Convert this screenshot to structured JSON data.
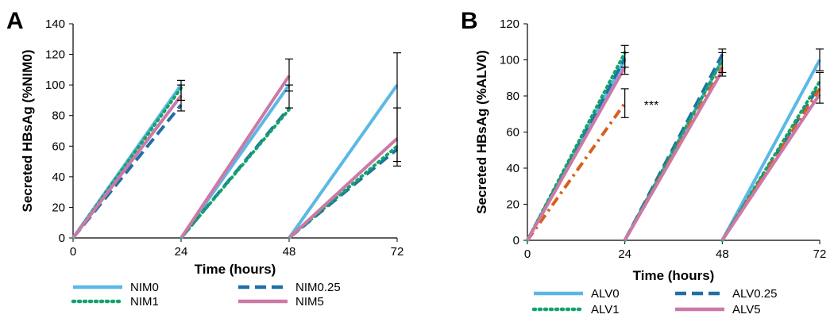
{
  "chart_data": [
    {
      "panel": "A",
      "type": "line",
      "xlabel": "Time (hours)",
      "ylabel": "Secreted HBsAg (%NIM0)",
      "xlim": [
        0,
        72
      ],
      "ylim": [
        0,
        140
      ],
      "xticks": [
        0,
        24,
        48,
        72
      ],
      "yticks": [
        0,
        20,
        40,
        60,
        80,
        100,
        120,
        140
      ],
      "grid": false,
      "legend_position": "bottom",
      "series": [
        {
          "name": "NIM0",
          "color": "#5BB8E6",
          "style": "solid",
          "segments": [
            [
              [
                0,
                0
              ],
              [
                24,
                100
              ]
            ],
            [
              [
                24,
                0
              ],
              [
                48,
                100
              ]
            ],
            [
              [
                48,
                0
              ],
              [
                72,
                100
              ]
            ]
          ]
        },
        {
          "name": "NIM0.25",
          "color": "#1F6FA8",
          "style": "dashed",
          "segments": [
            [
              [
                0,
                0
              ],
              [
                24,
                87
              ]
            ],
            [
              [
                24,
                0
              ],
              [
                48,
                85
              ]
            ],
            [
              [
                48,
                0
              ],
              [
                72,
                58
              ]
            ]
          ]
        },
        {
          "name": "NIM1",
          "color": "#14A36B",
          "style": "dotted",
          "segments": [
            [
              [
                0,
                0
              ],
              [
                24,
                98
              ]
            ],
            [
              [
                24,
                0
              ],
              [
                48,
                84
              ]
            ],
            [
              [
                48,
                0
              ],
              [
                72,
                60
              ]
            ]
          ]
        },
        {
          "name": "NIM5",
          "color": "#CC79A7",
          "style": "solid",
          "segments": [
            [
              [
                0,
                0
              ],
              [
                24,
                93
              ]
            ],
            [
              [
                24,
                0
              ],
              [
                48,
                106
              ]
            ],
            [
              [
                48,
                0
              ],
              [
                72,
                65
              ]
            ]
          ]
        }
      ],
      "error_bars": [
        {
          "x": 24,
          "low": 90,
          "high": 103
        },
        {
          "x": 24,
          "low": 83,
          "high": 100
        },
        {
          "x": 48,
          "low": 96,
          "high": 117
        },
        {
          "x": 48,
          "low": 85,
          "high": 100
        },
        {
          "x": 72,
          "low": 47,
          "high": 121
        },
        {
          "x": 72,
          "low": 50,
          "high": 85
        }
      ]
    },
    {
      "panel": "B",
      "type": "line",
      "xlabel": "Time (hours)",
      "ylabel": "Secreted HBsAg (%ALV0)",
      "xlim": [
        0,
        72
      ],
      "ylim": [
        0,
        120
      ],
      "xticks": [
        0,
        24,
        48,
        72
      ],
      "yticks": [
        0,
        20,
        40,
        60,
        80,
        100,
        120
      ],
      "grid": false,
      "legend_position": "bottom",
      "annotation": "***",
      "series": [
        {
          "name": "ALV0",
          "color": "#5BB8E6",
          "style": "solid",
          "segments": [
            [
              [
                0,
                0
              ],
              [
                24,
                100
              ]
            ],
            [
              [
                24,
                0
              ],
              [
                48,
                100
              ]
            ],
            [
              [
                48,
                0
              ],
              [
                72,
                100
              ]
            ]
          ]
        },
        {
          "name": "ALV0.25",
          "color": "#1F6FA8",
          "style": "dashed",
          "segments": [
            [
              [
                0,
                0
              ],
              [
                24,
                101
              ]
            ],
            [
              [
                24,
                0
              ],
              [
                48,
                103
              ]
            ],
            [
              [
                48,
                0
              ],
              [
                72,
                86
              ]
            ]
          ]
        },
        {
          "name": "ALV1",
          "color": "#14A36B",
          "style": "dotted",
          "segments": [
            [
              [
                0,
                0
              ],
              [
                24,
                104
              ]
            ],
            [
              [
                24,
                0
              ],
              [
                48,
                100
              ]
            ],
            [
              [
                48,
                0
              ],
              [
                72,
                88
              ]
            ]
          ]
        },
        {
          "name": "",
          "color": "#D7601A",
          "style": "dashdot",
          "segments": [
            [
              [
                0,
                0
              ],
              [
                24,
                76
              ]
            ],
            [
              [
                24,
                0
              ],
              [
                48,
                96
              ]
            ],
            [
              [
                48,
                0
              ],
              [
                72,
                84
              ]
            ]
          ]
        },
        {
          "name": "ALV5",
          "color": "#CC79A7",
          "style": "solid",
          "segments": [
            [
              [
                0,
                0
              ],
              [
                24,
                96
              ]
            ],
            [
              [
                24,
                0
              ],
              [
                48,
                94
              ]
            ],
            [
              [
                48,
                0
              ],
              [
                72,
                81
              ]
            ]
          ]
        }
      ],
      "error_bars": [
        {
          "x": 24,
          "low": 96,
          "high": 108
        },
        {
          "x": 24,
          "low": 92,
          "high": 104
        },
        {
          "x": 24,
          "low": 68,
          "high": 84
        },
        {
          "x": 48,
          "low": 91,
          "high": 106
        },
        {
          "x": 48,
          "low": 93,
          "high": 104
        },
        {
          "x": 72,
          "low": 94,
          "high": 106
        },
        {
          "x": 72,
          "low": 76,
          "high": 93
        }
      ]
    }
  ]
}
